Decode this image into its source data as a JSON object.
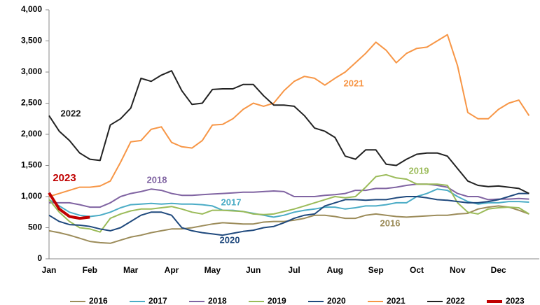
{
  "chart_data": {
    "type": "line",
    "categories": [
      "Jan",
      null,
      null,
      null,
      "Feb",
      null,
      null,
      null,
      "Mar",
      null,
      null,
      null,
      "Apr",
      null,
      null,
      null,
      "May",
      null,
      null,
      null,
      "Jun",
      null,
      null,
      null,
      "Jul",
      null,
      null,
      null,
      "Aug",
      null,
      null,
      null,
      "Sep",
      null,
      null,
      null,
      "Oct",
      null,
      null,
      null,
      "Nov",
      null,
      null,
      null,
      "Dec",
      null,
      null,
      null
    ],
    "ylim": [
      0,
      4000
    ],
    "yticks": [
      0,
      500,
      {
        "value": 1000,
        "label": "1,000"
      },
      {
        "value": 1500,
        "label": "1,500"
      },
      {
        "value": 2000,
        "label": "2,000"
      },
      {
        "value": 2500,
        "label": "2,500"
      },
      {
        "value": 3000,
        "label": "3,000"
      },
      {
        "value": 3500,
        "label": "3,500"
      },
      {
        "value": 4000,
        "label": "4,000"
      }
    ],
    "grid": false,
    "legend": "bottom",
    "series": [
      {
        "name": "2016",
        "color": "#9c8c5a",
        "values": [
          450,
          420,
          380,
          330,
          280,
          260,
          250,
          300,
          350,
          380,
          420,
          450,
          480,
          480,
          500,
          530,
          560,
          580,
          570,
          560,
          560,
          590,
          600,
          600,
          620,
          650,
          700,
          700,
          680,
          650,
          650,
          700,
          720,
          700,
          680,
          670,
          680,
          690,
          700,
          700,
          720,
          730,
          800,
          830,
          850,
          830,
          780,
          720
        ]
      },
      {
        "name": "2017",
        "color": "#4bacc6",
        "values": [
          950,
          850,
          750,
          700,
          680,
          700,
          750,
          820,
          870,
          880,
          890,
          880,
          890,
          880,
          880,
          870,
          850,
          780,
          780,
          760,
          730,
          700,
          670,
          700,
          750,
          780,
          800,
          830,
          830,
          800,
          820,
          850,
          850,
          870,
          900,
          900,
          1000,
          1050,
          1120,
          1100,
          1000,
          920,
          880,
          900,
          900,
          920,
          920,
          910
        ]
      },
      {
        "name": "2018",
        "color": "#8064a2",
        "values": [
          900,
          900,
          900,
          870,
          830,
          830,
          900,
          1000,
          1050,
          1080,
          1120,
          1100,
          1050,
          1020,
          1020,
          1030,
          1040,
          1050,
          1060,
          1070,
          1070,
          1080,
          1090,
          1080,
          1000,
          1000,
          1000,
          1020,
          1030,
          1050,
          1100,
          1100,
          1130,
          1130,
          1150,
          1180,
          1200,
          1200,
          1180,
          1150,
          1050,
          1000,
          1000,
          950,
          960,
          960,
          970,
          960
        ]
      },
      {
        "name": "2019",
        "color": "#9bbb59",
        "values": [
          950,
          750,
          600,
          500,
          480,
          430,
          650,
          720,
          770,
          800,
          800,
          820,
          840,
          800,
          750,
          720,
          780,
          780,
          770,
          760,
          720,
          710,
          720,
          760,
          800,
          850,
          900,
          950,
          1000,
          980,
          1000,
          1150,
          1320,
          1350,
          1300,
          1280,
          1200,
          1200,
          1200,
          1180,
          900,
          750,
          720,
          800,
          820,
          830,
          820,
          720
        ]
      },
      {
        "name": "2020",
        "color": "#1f497d",
        "values": [
          700,
          600,
          550,
          540,
          520,
          480,
          450,
          500,
          600,
          700,
          750,
          750,
          700,
          500,
          450,
          420,
          400,
          380,
          410,
          440,
          460,
          500,
          520,
          580,
          650,
          700,
          720,
          850,
          900,
          950,
          950,
          940,
          950,
          950,
          980,
          1000,
          1000,
          980,
          950,
          940,
          920,
          900,
          900,
          920,
          950,
          1000,
          1050,
          1050
        ]
      },
      {
        "name": "2021",
        "color": "#f79646",
        "values": [
          1000,
          1050,
          1100,
          1150,
          1150,
          1170,
          1250,
          1550,
          1880,
          1900,
          2080,
          2120,
          1870,
          1800,
          1780,
          1900,
          2150,
          2160,
          2250,
          2400,
          2500,
          2450,
          2500,
          2700,
          2850,
          2930,
          2900,
          2790,
          2900,
          3000,
          3150,
          3300,
          3480,
          3350,
          3150,
          3300,
          3380,
          3400,
          3500,
          3600,
          3100,
          2350,
          2250,
          2250,
          2400,
          2500,
          2550,
          2300
        ]
      },
      {
        "name": "2022",
        "color": "#222222",
        "values": [
          2300,
          2050,
          1900,
          1700,
          1600,
          1580,
          2150,
          2250,
          2420,
          2900,
          2850,
          2950,
          3020,
          2700,
          2480,
          2500,
          2720,
          2730,
          2730,
          2800,
          2800,
          2620,
          2470,
          2470,
          2450,
          2300,
          2100,
          2050,
          1950,
          1650,
          1600,
          1750,
          1750,
          1520,
          1500,
          1600,
          1680,
          1700,
          1700,
          1650,
          1450,
          1250,
          1180,
          1160,
          1170,
          1150,
          1130,
          1050
        ]
      },
      {
        "name": "2023",
        "color": "#c00000",
        "values": [
          1060,
          800,
          680,
          650,
          670,
          null,
          null,
          null,
          null,
          null,
          null,
          null,
          null,
          null,
          null,
          null,
          null,
          null,
          null,
          null,
          null,
          null,
          null,
          null,
          null,
          null,
          null,
          null,
          null,
          null,
          null,
          null,
          null,
          null,
          null,
          null,
          null,
          null,
          null,
          null,
          null,
          null,
          null,
          null,
          null,
          null,
          null,
          null
        ]
      }
    ],
    "annotations": [
      "2016",
      "2017",
      "2018",
      "2019",
      "2020",
      "2021",
      "2022",
      "2023"
    ]
  }
}
